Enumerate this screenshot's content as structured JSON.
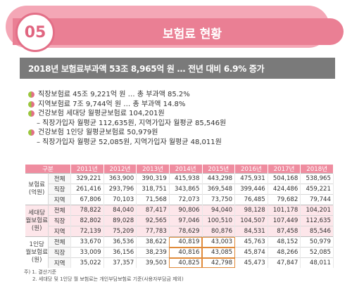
{
  "header": {
    "number": "05",
    "title": "보험료 현황"
  },
  "subtitle": "2018년 보험료부과액 53조 8,965억 원 … 전년 대비 6.9% 증가",
  "bullets": [
    {
      "type": "main",
      "text": "직장보험료 45조 9,221억 원 … 총 부과액 85.2%"
    },
    {
      "type": "main",
      "text": "지역보험료 7조 9,744억 원 … 총 부과액 14.8%"
    },
    {
      "type": "main",
      "text": "건강보험 세대당 월평균보험료 104,201원"
    },
    {
      "type": "sub",
      "text": "– 직장가입자 월평균 112,635원, 지역가입자 월평균 85,546원"
    },
    {
      "type": "main",
      "text": "건강보험 1인당 월평균보험료 50,979원"
    },
    {
      "type": "sub",
      "text": "– 직장가입자 월평균 52,085원, 지역가입자 월평균 48,011원"
    }
  ],
  "table": {
    "header_label": "구분",
    "years": [
      "2011년",
      "2012년",
      "2013년",
      "2014년",
      "2015년",
      "2016년",
      "2017년",
      "2018년"
    ],
    "groups": [
      {
        "name": [
          "보험료",
          "(억원)"
        ],
        "rows": [
          {
            "cat": "전체",
            "values": [
              "329,221",
              "363,900",
              "390,319",
              "415,938",
              "443,298",
              "475,931",
              "504,168",
              "538,965"
            ]
          },
          {
            "cat": "직장",
            "values": [
              "261,416",
              "293,796",
              "318,751",
              "343,865",
              "369,548",
              "399,446",
              "424,486",
              "459,221"
            ]
          },
          {
            "cat": "지역",
            "values": [
              "67,806",
              "70,103",
              "71,568",
              "72,073",
              "73,750",
              "76,485",
              "79,682",
              "79,744"
            ]
          }
        ]
      },
      {
        "name": [
          "세대당",
          "월보험료",
          "(원)"
        ],
        "rows": [
          {
            "cat": "전체",
            "values": [
              "78,822",
              "84,040",
              "87,417",
              "90,806",
              "94,040",
              "98,128",
              "101,178",
              "104,201"
            ]
          },
          {
            "cat": "직장",
            "values": [
              "82,802",
              "89,028",
              "92,565",
              "97,046",
              "100,510",
              "104,507",
              "107,449",
              "112,635"
            ]
          },
          {
            "cat": "지역",
            "values": [
              "72,139",
              "75,209",
              "77,783",
              "78,629",
              "80,876",
              "84,531",
              "87,458",
              "85,546"
            ]
          }
        ]
      },
      {
        "name": [
          "1인당",
          "월보험료",
          "(원)"
        ],
        "rows": [
          {
            "cat": "전체",
            "values": [
              "33,670",
              "36,536",
              "38,622",
              "40,819",
              "43,003",
              "45,763",
              "48,152",
              "50,979"
            ]
          },
          {
            "cat": "직장",
            "values": [
              "33,009",
              "36,156",
              "38,239",
              "40,816",
              "43,085",
              "45,874",
              "48,266",
              "52,085"
            ]
          },
          {
            "cat": "지역",
            "values": [
              "35,022",
              "37,357",
              "39,503",
              "40,825",
              "42,798",
              "45,473",
              "47,847",
              "48,011"
            ]
          }
        ]
      }
    ]
  },
  "notes": [
    "주) 1. 결산기준",
    "2. 세대당 및 1인당 월 보험료는 개인부담보험료 기준(사용자부담금 제외)"
  ],
  "colors": {
    "accent_pink": "#ea7f94",
    "light_pink": "#f4a7b6",
    "subtitle_gray": "#7a7a7a",
    "table_header": "#ef8da0",
    "highlight_orange": "#e08a3a"
  }
}
